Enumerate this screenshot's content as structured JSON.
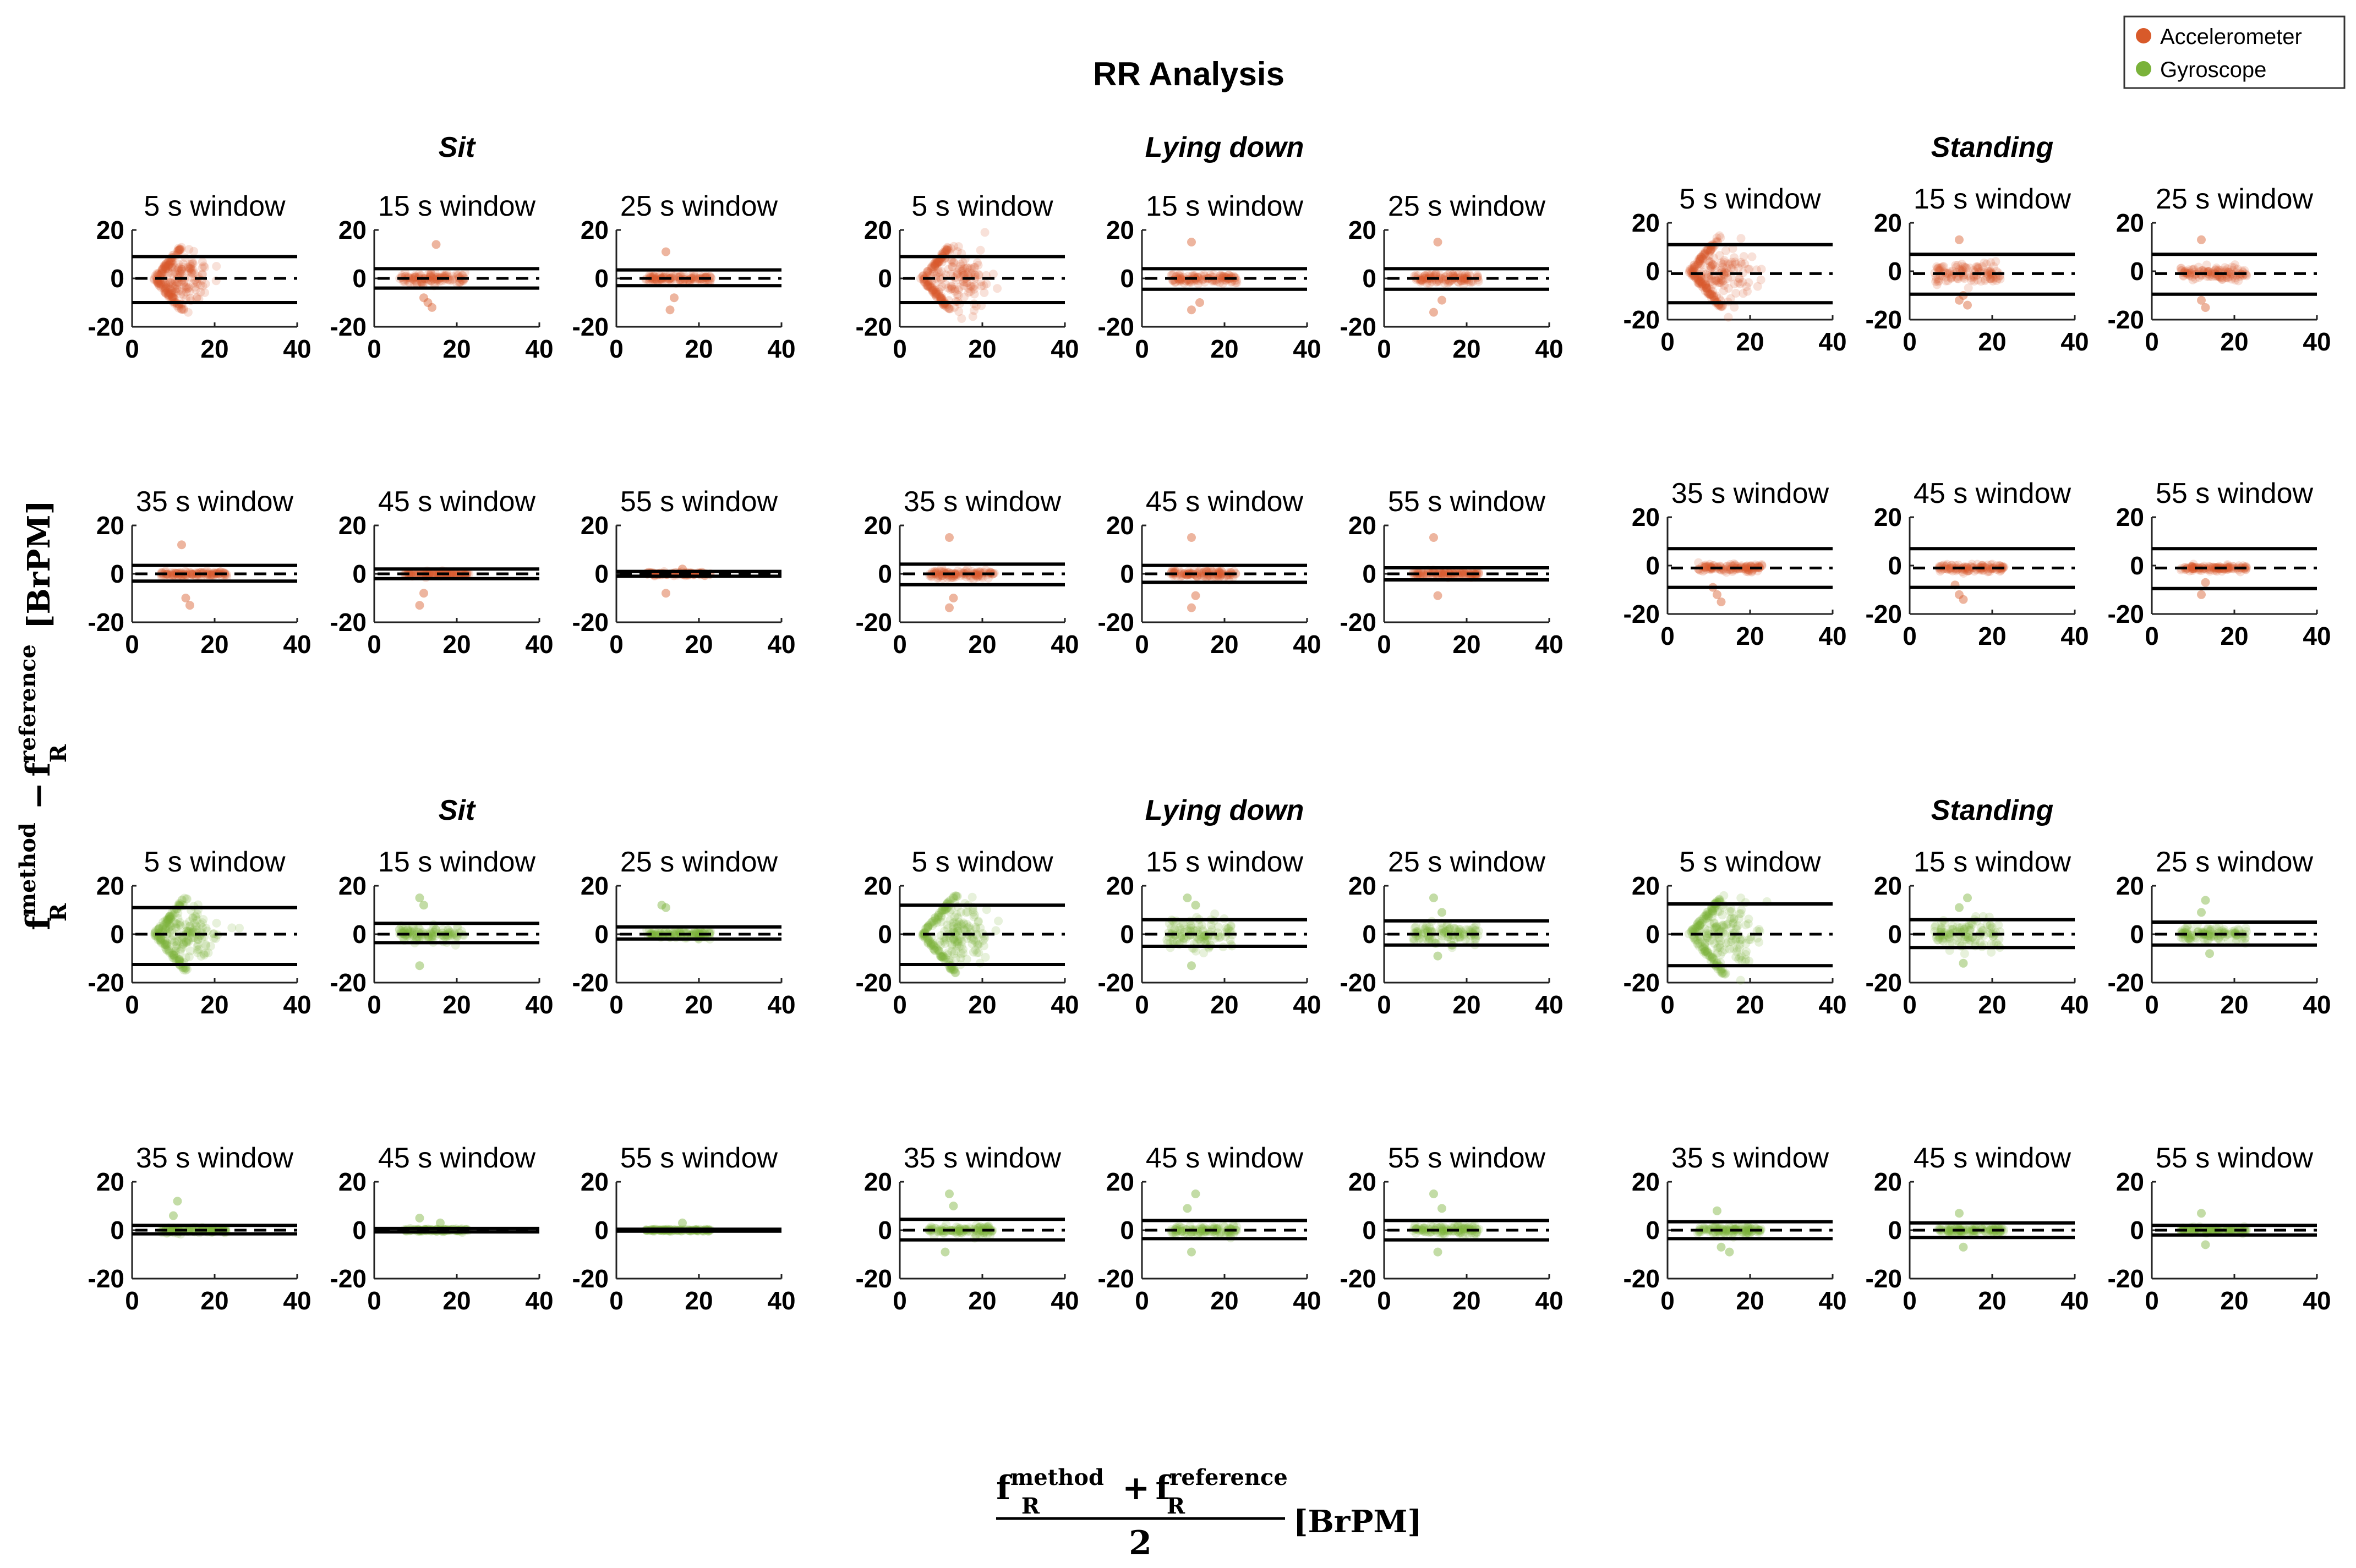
{
  "title": "RR Analysis",
  "legend": {
    "placement": "top-right",
    "entries": [
      {
        "name": "Accelerometer",
        "color": "#d85a2a"
      },
      {
        "name": "Gyroscope",
        "color": "#7ab23a"
      }
    ]
  },
  "ylabel": {
    "base": "f",
    "sub": "R",
    "sup1": "method",
    "minus": "−",
    "sup2": "reference",
    "units": "[BrPM]"
  },
  "xlabel": {
    "num_base1": "f",
    "num_sup1": "method",
    "num_sub": "R",
    "plus": "+",
    "num_base2": "f",
    "num_sup2": "reference",
    "den": "2",
    "units": "[BrPM]"
  },
  "activities": [
    "Sit",
    "Lying down",
    "Standing"
  ],
  "windows": [
    "5 s window",
    "15 s window",
    "25 s window",
    "35 s window",
    "45 s window",
    "55 s window"
  ],
  "axes": {
    "xlim": [
      0,
      40
    ],
    "ylim": [
      -20,
      20
    ],
    "xticks": [
      "0",
      "20",
      "40"
    ],
    "yticks": [
      "20",
      "0",
      "-20"
    ]
  },
  "chart_data": {
    "type": "scatter",
    "subtype": "bland-altman",
    "title": "RR Analysis",
    "xlabel": "(f_R^method + f_R^reference)/2 [BrPM]",
    "ylabel": "f_R^method - f_R^reference [BrPM]",
    "xlim": [
      0,
      40
    ],
    "ylim": [
      -20,
      20
    ],
    "sensors": [
      "Accelerometer",
      "Gyroscope"
    ],
    "activities": [
      "Sit",
      "Lying down",
      "Standing"
    ],
    "windows": [
      "5 s window",
      "15 s window",
      "25 s window",
      "35 s window",
      "45 s window",
      "55 s window"
    ],
    "panels": [
      {
        "sensor": "Accelerometer",
        "activity": "Sit",
        "window": "5 s window",
        "bias": 0,
        "loa": [
          9,
          -10
        ],
        "x_center": 12,
        "x_spread": 3.5,
        "y_spread": 5,
        "edge_x0": 5
      },
      {
        "sensor": "Accelerometer",
        "activity": "Sit",
        "window": "15 s window",
        "bias": 0,
        "loa": [
          4,
          -4
        ],
        "x_center": 14,
        "x_spread": 4,
        "y_spread": 1.2,
        "outliers": [
          [
            12,
            -8
          ],
          [
            14,
            -12
          ],
          [
            15,
            14
          ],
          [
            13,
            -10
          ]
        ]
      },
      {
        "sensor": "Accelerometer",
        "activity": "Sit",
        "window": "25 s window",
        "bias": 0,
        "loa": [
          3.5,
          -3
        ],
        "x_center": 15,
        "x_spread": 4,
        "y_spread": 0.8,
        "outliers": [
          [
            12,
            11
          ],
          [
            13,
            -13
          ],
          [
            14,
            -8
          ]
        ]
      },
      {
        "sensor": "Accelerometer",
        "activity": "Sit",
        "window": "35 s window",
        "bias": 0,
        "loa": [
          3.5,
          -3
        ],
        "x_center": 15,
        "x_spread": 4,
        "y_spread": 0.6,
        "outliers": [
          [
            12,
            12
          ],
          [
            13,
            -10
          ],
          [
            14,
            -13
          ]
        ]
      },
      {
        "sensor": "Accelerometer",
        "activity": "Sit",
        "window": "45 s window",
        "bias": 0,
        "loa": [
          2,
          -2
        ],
        "x_center": 15,
        "x_spread": 4,
        "y_spread": 0.4,
        "outliers": [
          [
            12,
            -8
          ],
          [
            11,
            -13
          ]
        ]
      },
      {
        "sensor": "Accelerometer",
        "activity": "Sit",
        "window": "55 s window",
        "bias": 0,
        "loa": [
          1,
          -1
        ],
        "x_center": 15,
        "x_spread": 4,
        "y_spread": 0.3,
        "outliers": [
          [
            12,
            -8
          ],
          [
            16,
            2
          ]
        ]
      },
      {
        "sensor": "Accelerometer",
        "activity": "Lying down",
        "window": "5 s window",
        "bias": 0,
        "loa": [
          9,
          -10
        ],
        "x_center": 14,
        "x_spread": 4,
        "y_spread": 6,
        "edge_x0": 5
      },
      {
        "sensor": "Accelerometer",
        "activity": "Lying down",
        "window": "15 s window",
        "bias": 0,
        "loa": [
          4,
          -4.5
        ],
        "x_center": 15,
        "x_spread": 4,
        "y_spread": 1,
        "outliers": [
          [
            12,
            15
          ],
          [
            12,
            -13
          ],
          [
            14,
            -10
          ]
        ]
      },
      {
        "sensor": "Accelerometer",
        "activity": "Lying down",
        "window": "25 s window",
        "bias": 0,
        "loa": [
          4,
          -4.5
        ],
        "x_center": 15,
        "x_spread": 4,
        "y_spread": 1,
        "outliers": [
          [
            13,
            15
          ],
          [
            12,
            -14
          ],
          [
            14,
            -9
          ]
        ]
      },
      {
        "sensor": "Accelerometer",
        "activity": "Lying down",
        "window": "35 s window",
        "bias": 0,
        "loa": [
          4,
          -4.5
        ],
        "x_center": 15,
        "x_spread": 4,
        "y_spread": 0.8,
        "outliers": [
          [
            12,
            15
          ],
          [
            13,
            -10
          ],
          [
            12,
            -14
          ]
        ]
      },
      {
        "sensor": "Accelerometer",
        "activity": "Lying down",
        "window": "45 s window",
        "bias": 0,
        "loa": [
          3.5,
          -3.5
        ],
        "x_center": 15,
        "x_spread": 4,
        "y_spread": 0.8,
        "outliers": [
          [
            12,
            15
          ],
          [
            13,
            -9
          ],
          [
            12,
            -14
          ]
        ]
      },
      {
        "sensor": "Accelerometer",
        "activity": "Lying down",
        "window": "55 s window",
        "bias": 0,
        "loa": [
          2.5,
          -2.5
        ],
        "x_center": 15,
        "x_spread": 4,
        "y_spread": 0.6,
        "outliers": [
          [
            12,
            15
          ],
          [
            13,
            -9
          ]
        ]
      },
      {
        "sensor": "Accelerometer",
        "activity": "Standing",
        "window": "5 s window",
        "bias": -1,
        "loa": [
          11,
          -13
        ],
        "x_center": 12,
        "x_spread": 4,
        "y_spread": 6,
        "edge_x0": 5
      },
      {
        "sensor": "Accelerometer",
        "activity": "Standing",
        "window": "15 s window",
        "bias": -1,
        "loa": [
          7,
          -9.5
        ],
        "x_center": 14,
        "x_spread": 4,
        "y_spread": 2,
        "outliers": [
          [
            12,
            -12
          ],
          [
            13,
            -10
          ],
          [
            14,
            -14
          ],
          [
            12,
            13
          ]
        ]
      },
      {
        "sensor": "Accelerometer",
        "activity": "Standing",
        "window": "25 s window",
        "bias": -1,
        "loa": [
          7,
          -9.5
        ],
        "x_center": 15,
        "x_spread": 4,
        "y_spread": 1.5,
        "outliers": [
          [
            12,
            -12
          ],
          [
            13,
            -15
          ],
          [
            12,
            13
          ]
        ]
      },
      {
        "sensor": "Accelerometer",
        "activity": "Standing",
        "window": "35 s window",
        "bias": -1,
        "loa": [
          7,
          -9
        ],
        "x_center": 15,
        "x_spread": 4,
        "y_spread": 0.8,
        "outliers": [
          [
            12,
            -12
          ],
          [
            13,
            -15
          ],
          [
            11,
            -9
          ]
        ]
      },
      {
        "sensor": "Accelerometer",
        "activity": "Standing",
        "window": "45 s window",
        "bias": -1,
        "loa": [
          7,
          -9
        ],
        "x_center": 15,
        "x_spread": 4,
        "y_spread": 0.8,
        "outliers": [
          [
            12,
            -12
          ],
          [
            13,
            -14
          ],
          [
            11,
            -8
          ]
        ]
      },
      {
        "sensor": "Accelerometer",
        "activity": "Standing",
        "window": "55 s window",
        "bias": -1,
        "loa": [
          7,
          -9.5
        ],
        "x_center": 15,
        "x_spread": 4,
        "y_spread": 0.6,
        "outliers": [
          [
            12,
            -12
          ],
          [
            13,
            -7
          ]
        ]
      },
      {
        "sensor": "Gyroscope",
        "activity": "Sit",
        "window": "5 s window",
        "bias": 0,
        "loa": [
          11,
          -12.5
        ],
        "x_center": 13,
        "x_spread": 4,
        "y_spread": 5,
        "edge_x0": 5
      },
      {
        "sensor": "Gyroscope",
        "activity": "Sit",
        "window": "15 s window",
        "bias": 0,
        "loa": [
          4.5,
          -3.5
        ],
        "x_center": 14,
        "x_spread": 4,
        "y_spread": 1.5,
        "outliers": [
          [
            11,
            15
          ],
          [
            12,
            12
          ],
          [
            11,
            -13
          ]
        ]
      },
      {
        "sensor": "Gyroscope",
        "activity": "Sit",
        "window": "25 s window",
        "bias": 0,
        "loa": [
          3,
          -2
        ],
        "x_center": 15,
        "x_spread": 4,
        "y_spread": 0.8,
        "outliers": [
          [
            11,
            12
          ],
          [
            12,
            11
          ]
        ]
      },
      {
        "sensor": "Gyroscope",
        "activity": "Sit",
        "window": "35 s window",
        "bias": 0,
        "loa": [
          2,
          -1.5
        ],
        "x_center": 15,
        "x_spread": 4,
        "y_spread": 0.6,
        "outliers": [
          [
            11,
            12
          ],
          [
            10,
            6
          ]
        ]
      },
      {
        "sensor": "Gyroscope",
        "activity": "Sit",
        "window": "45 s window",
        "bias": 0,
        "loa": [
          0.7,
          -0.7
        ],
        "x_center": 15,
        "x_spread": 4,
        "y_spread": 0.3,
        "outliers": [
          [
            11,
            5
          ],
          [
            16,
            3
          ]
        ]
      },
      {
        "sensor": "Gyroscope",
        "activity": "Sit",
        "window": "55 s window",
        "bias": 0,
        "loa": [
          0.4,
          -0.4
        ],
        "x_center": 15,
        "x_spread": 4,
        "y_spread": 0.2,
        "outliers": [
          [
            16,
            3
          ]
        ]
      },
      {
        "sensor": "Gyroscope",
        "activity": "Lying down",
        "window": "5 s window",
        "bias": 0,
        "loa": [
          12,
          -12.5
        ],
        "x_center": 14,
        "x_spread": 4,
        "y_spread": 6,
        "edge_x0": 5
      },
      {
        "sensor": "Gyroscope",
        "activity": "Lying down",
        "window": "15 s window",
        "bias": 0,
        "loa": [
          6,
          -5
        ],
        "x_center": 14,
        "x_spread": 4,
        "y_spread": 3,
        "outliers": [
          [
            11,
            15
          ],
          [
            12,
            -13
          ],
          [
            13,
            12
          ]
        ]
      },
      {
        "sensor": "Gyroscope",
        "activity": "Lying down",
        "window": "25 s window",
        "bias": 0,
        "loa": [
          5.5,
          -4.5
        ],
        "x_center": 15,
        "x_spread": 4,
        "y_spread": 2,
        "outliers": [
          [
            12,
            15
          ],
          [
            13,
            -9
          ],
          [
            14,
            9
          ]
        ]
      },
      {
        "sensor": "Gyroscope",
        "activity": "Lying down",
        "window": "35 s window",
        "bias": 0,
        "loa": [
          4.5,
          -4
        ],
        "x_center": 15,
        "x_spread": 4,
        "y_spread": 1,
        "outliers": [
          [
            12,
            15
          ],
          [
            11,
            -9
          ],
          [
            13,
            10
          ]
        ]
      },
      {
        "sensor": "Gyroscope",
        "activity": "Lying down",
        "window": "45 s window",
        "bias": 0,
        "loa": [
          4,
          -3.5
        ],
        "x_center": 15,
        "x_spread": 4,
        "y_spread": 1,
        "outliers": [
          [
            13,
            15
          ],
          [
            12,
            -9
          ],
          [
            11,
            9
          ]
        ]
      },
      {
        "sensor": "Gyroscope",
        "activity": "Lying down",
        "window": "55 s window",
        "bias": 0,
        "loa": [
          4,
          -4
        ],
        "x_center": 15,
        "x_spread": 4,
        "y_spread": 1,
        "outliers": [
          [
            12,
            15
          ],
          [
            13,
            -9
          ],
          [
            14,
            9
          ]
        ]
      },
      {
        "sensor": "Gyroscope",
        "activity": "Standing",
        "window": "5 s window",
        "bias": 0,
        "loa": [
          12.5,
          -13
        ],
        "x_center": 14,
        "x_spread": 4,
        "y_spread": 6,
        "edge_x0": 5
      },
      {
        "sensor": "Gyroscope",
        "activity": "Standing",
        "window": "15 s window",
        "bias": 0,
        "loa": [
          6,
          -5.5
        ],
        "x_center": 14,
        "x_spread": 4,
        "y_spread": 3,
        "outliers": [
          [
            14,
            15
          ],
          [
            13,
            -12
          ],
          [
            12,
            11
          ]
        ]
      },
      {
        "sensor": "Gyroscope",
        "activity": "Standing",
        "window": "25 s window",
        "bias": 0,
        "loa": [
          5,
          -4.5
        ],
        "x_center": 15,
        "x_spread": 4,
        "y_spread": 1.5,
        "outliers": [
          [
            13,
            14
          ],
          [
            14,
            -8
          ],
          [
            12,
            9
          ]
        ]
      },
      {
        "sensor": "Gyroscope",
        "activity": "Standing",
        "window": "35 s window",
        "bias": 0,
        "loa": [
          3.5,
          -3.5
        ],
        "x_center": 15,
        "x_spread": 4,
        "y_spread": 1,
        "outliers": [
          [
            12,
            8
          ],
          [
            13,
            -7
          ],
          [
            15,
            -9
          ]
        ]
      },
      {
        "sensor": "Gyroscope",
        "activity": "Standing",
        "window": "45 s window",
        "bias": 0,
        "loa": [
          3,
          -3
        ],
        "x_center": 15,
        "x_spread": 4,
        "y_spread": 0.8,
        "outliers": [
          [
            12,
            7
          ],
          [
            13,
            -7
          ]
        ]
      },
      {
        "sensor": "Gyroscope",
        "activity": "Standing",
        "window": "55 s window",
        "bias": 0,
        "loa": [
          2,
          -2
        ],
        "x_center": 15,
        "x_spread": 4,
        "y_spread": 0.6,
        "outliers": [
          [
            12,
            7
          ],
          [
            13,
            -6
          ]
        ]
      }
    ]
  }
}
